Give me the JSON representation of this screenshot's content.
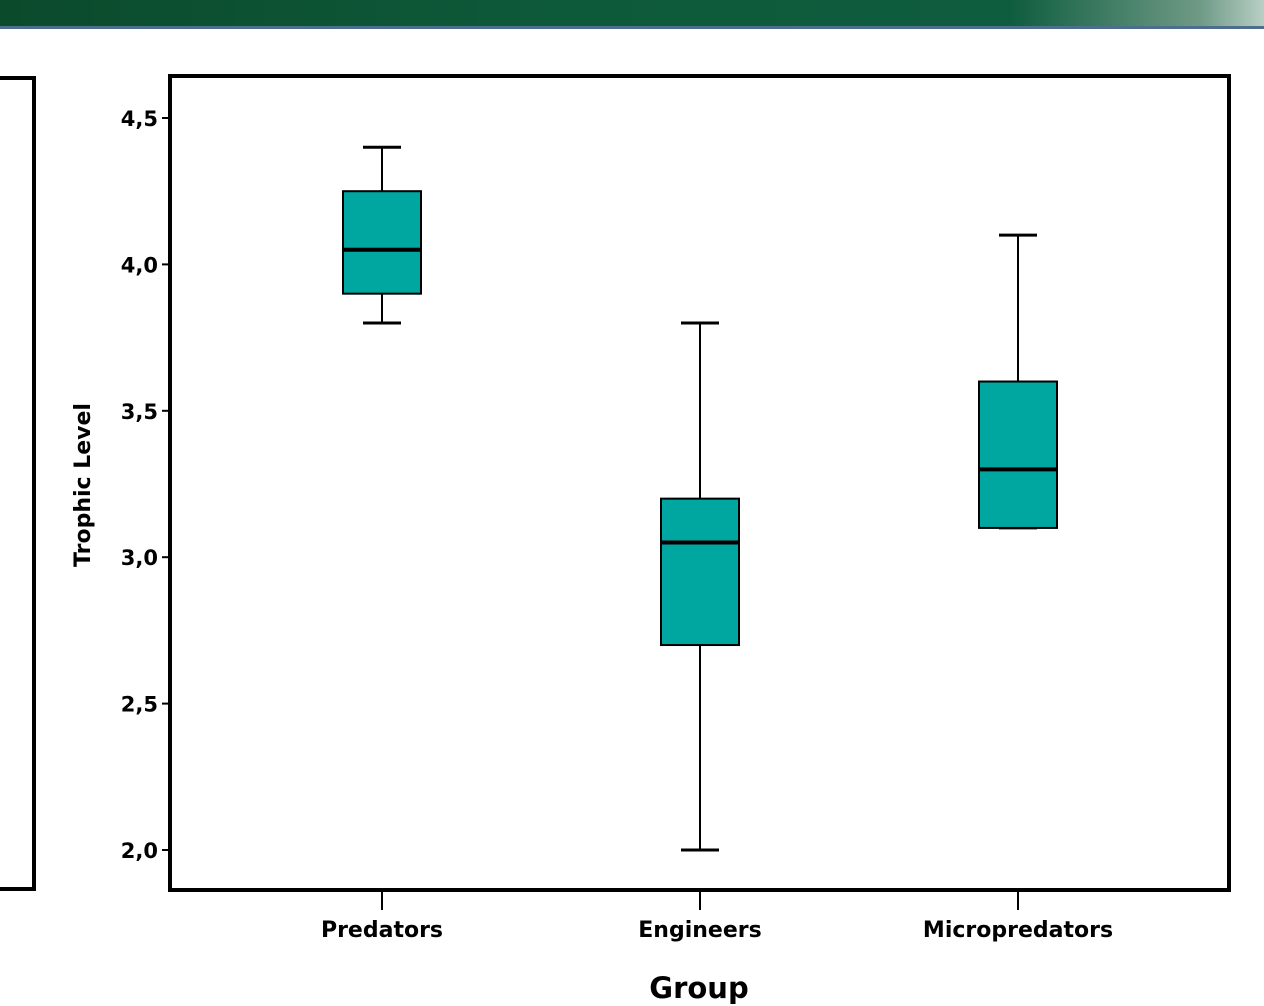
{
  "chart_data": {
    "type": "box",
    "xlabel": "Group",
    "ylabel": "Trophic Level",
    "ylim": [
      1.93,
      4.65
    ],
    "yticks": [
      2.0,
      2.5,
      3.0,
      3.5,
      4.0,
      4.5
    ],
    "ytick_labels": [
      "2,0",
      "2,5",
      "3,0",
      "3,5",
      "4,0",
      "4,5"
    ],
    "categories": [
      "Predators",
      "Engineers",
      "Micropredators"
    ],
    "boxes": [
      {
        "category": "Predators",
        "whisker_low": 3.8,
        "q1": 3.9,
        "median": 4.05,
        "q3": 4.25,
        "whisker_high": 4.4
      },
      {
        "category": "Engineers",
        "whisker_low": 2.0,
        "q1": 2.7,
        "median": 3.05,
        "q3": 3.2,
        "whisker_high": 3.8
      },
      {
        "category": "Micropredators",
        "whisker_low": 3.1,
        "q1": 3.1,
        "median": 3.3,
        "q3": 3.6,
        "whisker_high": 4.1
      }
    ],
    "grid": false,
    "legend": "none",
    "box_color": "#00a6a0",
    "line_color": "#000000"
  },
  "colors": {
    "banner": "#0d5a3a",
    "banner_line": "#4d6e8f"
  }
}
